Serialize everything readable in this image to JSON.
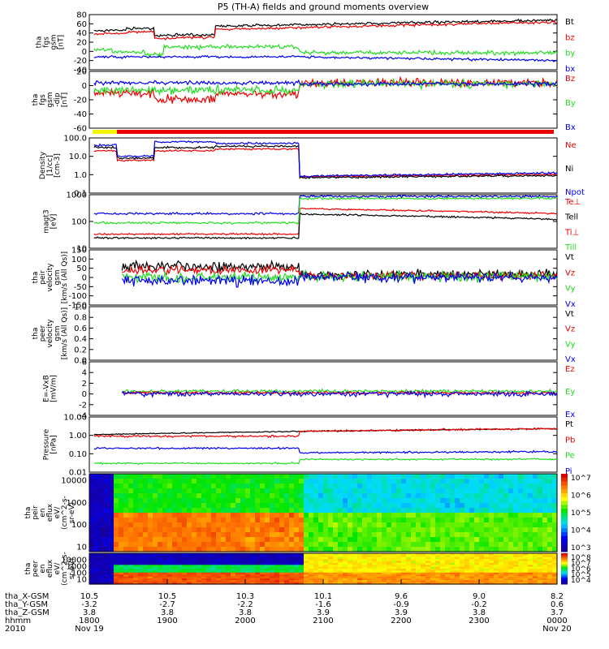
{
  "title": "P5 (TH-A) fields and ground moments overview",
  "colors": {
    "black": "#000000",
    "red": "#ee0000",
    "green": "#22dd22",
    "blue": "#0000ee",
    "yellow": "#f4f400"
  },
  "chart_data": [
    {
      "id": "fgs_gsm",
      "type": "line",
      "ylabel": [
        "tha",
        "fgs",
        "gsm",
        "[nT]"
      ],
      "ylim": [
        -40,
        80
      ],
      "yticks": [
        80,
        60,
        40,
        20,
        0,
        -20,
        -40
      ],
      "series": [
        {
          "name": "Bt",
          "color": "black"
        },
        {
          "name": "bz",
          "color": "red"
        },
        {
          "name": "by",
          "color": "green"
        },
        {
          "name": "bx",
          "color": "blue"
        }
      ]
    },
    {
      "id": "fgs_gsm_dip",
      "type": "line",
      "ylabel": [
        "tha",
        "fgs",
        "gsm",
        "-dip",
        "[nT]"
      ],
      "ylim": [
        -70,
        20
      ],
      "yticks": [
        20,
        0,
        -20,
        -40,
        -60
      ],
      "series": [
        {
          "name": "Bz",
          "color": "red"
        },
        {
          "name": "By",
          "color": "green"
        },
        {
          "name": "Bx",
          "color": "blue"
        }
      ]
    },
    {
      "id": "region_bar",
      "type": "bar",
      "note": "region indicator strip (yellow then red)"
    },
    {
      "id": "density",
      "type": "line",
      "scale": "log",
      "ylabel": [
        "Density",
        "[1/cc]",
        "[cm-3]"
      ],
      "ylim": [
        0.1,
        100
      ],
      "yticks": [
        "100.0",
        "10.0",
        "1.0",
        "0.1"
      ],
      "series": [
        {
          "name": "Ne",
          "color": "red"
        },
        {
          "name": "Ni",
          "color": "black"
        },
        {
          "name": "Npot",
          "color": "blue"
        }
      ]
    },
    {
      "id": "temperature",
      "type": "line",
      "scale": "log",
      "ylabel": [
        "magt3",
        "[eV]"
      ],
      "ylim": [
        10,
        3000
      ],
      "yticks": [
        "1000",
        "100",
        "10"
      ],
      "series": [
        {
          "name": "Te⊥",
          "color": "red"
        },
        {
          "name": "Tell",
          "color": "black"
        },
        {
          "name": "Ti⊥",
          "color": "red"
        },
        {
          "name": "Till",
          "color": "green"
        }
      ]
    },
    {
      "id": "peir_velocity",
      "type": "line",
      "ylabel": [
        "tha",
        "peir",
        "velocity",
        "gsm",
        "[km/s (All Qs)]"
      ],
      "ylim": [
        -150,
        150
      ],
      "yticks": [
        150,
        100,
        50,
        0,
        -50,
        -100,
        -150
      ],
      "series": [
        {
          "name": "Vt",
          "color": "black"
        },
        {
          "name": "Vz",
          "color": "red"
        },
        {
          "name": "Vy",
          "color": "green"
        },
        {
          "name": "Vx",
          "color": "blue"
        }
      ]
    },
    {
      "id": "peer_velocity",
      "type": "line",
      "ylabel": [
        "tha",
        "peer",
        "velocity",
        "gsm",
        "[km/s (All Qs)]"
      ],
      "ylim": [
        0,
        1
      ],
      "yticks": [
        "1.0",
        "0.8",
        "0.6",
        "0.4",
        "0.2",
        "0.0"
      ],
      "series": [
        {
          "name": "Vt",
          "color": "black"
        },
        {
          "name": "Vz",
          "color": "red"
        },
        {
          "name": "Vy",
          "color": "green"
        },
        {
          "name": "Vx",
          "color": "blue"
        }
      ]
    },
    {
      "id": "efield",
      "type": "line",
      "ylabel": [
        "E=-VxB",
        "[mV/m]"
      ],
      "ylim": [
        -4,
        6
      ],
      "yticks": [
        6,
        4,
        2,
        0,
        -2,
        -4
      ],
      "series": [
        {
          "name": "Ez",
          "color": "red"
        },
        {
          "name": "Ey",
          "color": "green"
        },
        {
          "name": "Ex",
          "color": "blue"
        }
      ]
    },
    {
      "id": "pressure",
      "type": "line",
      "scale": "log",
      "ylabel": [
        "Pressure",
        "[nPa]"
      ],
      "ylim": [
        0.01,
        10
      ],
      "yticks": [
        "10.00",
        "1.00",
        "0.10",
        "0.01"
      ],
      "series": [
        {
          "name": "Pt",
          "color": "black"
        },
        {
          "name": "Pb",
          "color": "red"
        },
        {
          "name": "Pe",
          "color": "green"
        },
        {
          "name": "Pi",
          "color": "blue"
        }
      ]
    },
    {
      "id": "peir_spectrogram",
      "type": "heatmap",
      "ylabel": [
        "tha",
        "peir",
        "en",
        "eflux",
        "eV/",
        "(cm^2-s-",
        "sr-eV)"
      ],
      "yticks": [
        "10000",
        "1000",
        "100",
        "10"
      ],
      "colorbar": [
        "10^7",
        "10^6",
        "10^5",
        "10^4",
        "10^3"
      ]
    },
    {
      "id": "peer_spectrogram",
      "type": "heatmap",
      "ylabel": [
        "tha",
        "peer",
        "en",
        "eflux",
        "eV/",
        "(cm^2-s-",
        "sr-eV)"
      ],
      "yticks": [
        "10000",
        "1000",
        "100",
        "10"
      ],
      "colorbar": [
        "10^8",
        "10^7",
        "10^6",
        "10^5",
        "10^4"
      ]
    }
  ],
  "xaxis": {
    "labels": [
      "tha_X-GSM",
      "tha_Y-GSM",
      "tha_Z-GSM",
      "hhmm",
      "2010"
    ],
    "ticks": [
      {
        "x": "10.5",
        "y": "-3.2",
        "z": "3.8",
        "t": "1800",
        "d": "Nov 19"
      },
      {
        "x": "10.5",
        "y": "-2.7",
        "z": "3.8",
        "t": "1900",
        "d": ""
      },
      {
        "x": "10.3",
        "y": "-2.2",
        "z": "3.8",
        "t": "2000",
        "d": ""
      },
      {
        "x": "10.1",
        "y": "-1.6",
        "z": "3.9",
        "t": "2100",
        "d": ""
      },
      {
        "x": "9.6",
        "y": "-0.9",
        "z": "3.9",
        "t": "2200",
        "d": ""
      },
      {
        "x": "9.0",
        "y": "-0.2",
        "z": "3.8",
        "t": "2300",
        "d": ""
      },
      {
        "x": "8.2",
        "y": "0.6",
        "z": "3.7",
        "t": "0000",
        "d": "Nov 20"
      }
    ]
  }
}
